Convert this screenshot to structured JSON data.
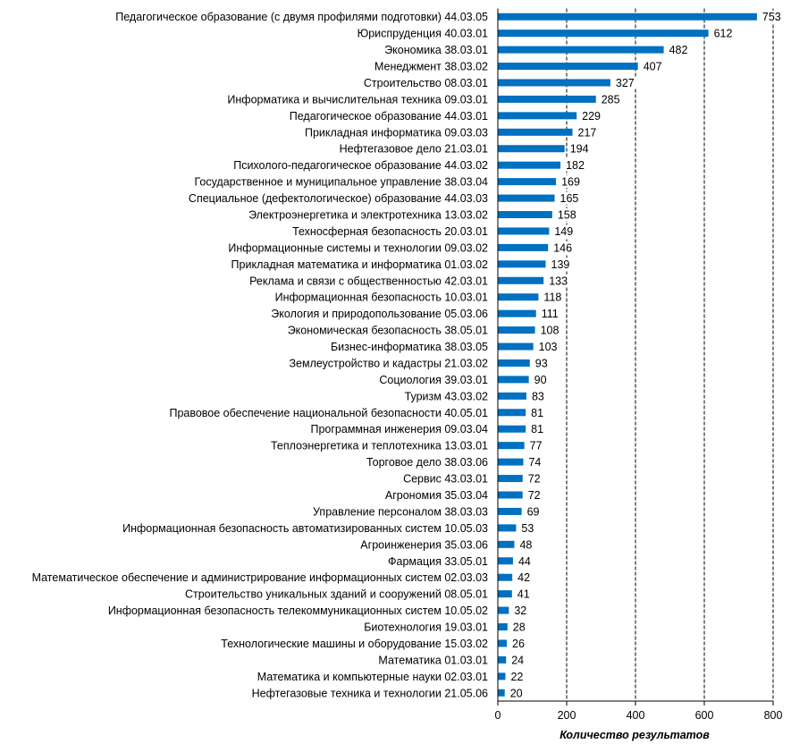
{
  "chart_data": {
    "type": "bar",
    "orientation": "horizontal",
    "xlabel": "Количество результатов",
    "xlim": [
      0,
      800
    ],
    "xticks": [
      0,
      200,
      400,
      600,
      800
    ],
    "grid": "vertical dashed",
    "bar_color": "#0070c0",
    "categories": [
      "Педагогическое образование (с двумя профилями подготовки) 44.03.05",
      "Юриспруденция 40.03.01",
      "Экономика 38.03.01",
      "Менеджмент 38.03.02",
      "Строительство 08.03.01",
      "Информатика и вычислительная техника 09.03.01",
      "Педагогическое образование 44.03.01",
      "Прикладная информатика 09.03.03",
      "Нефтегазовое дело 21.03.01",
      "Психолого-педагогическое образование 44.03.02",
      "Государственное и муниципальное управление 38.03.04",
      "Специальное (дефектологическое) образование 44.03.03",
      "Электроэнергетика и электротехника 13.03.02",
      "Техносферная безопасность 20.03.01",
      "Информационные системы и технологии 09.03.02",
      "Прикладная математика и информатика 01.03.02",
      "Реклама и связи с общественностью 42.03.01",
      "Информационная безопасность 10.03.01",
      "Экология и природопользование 05.03.06",
      "Экономическая безопасность 38.05.01",
      "Бизнес-информатика 38.03.05",
      "Землеустройство и кадастры 21.03.02",
      "Социология 39.03.01",
      "Туризм 43.03.02",
      "Правовое обеспечение национальной безопасности 40.05.01",
      "Программная инженерия 09.03.04",
      "Теплоэнергетика и теплотехника 13.03.01",
      "Торговое дело 38.03.06",
      "Сервис 43.03.01",
      "Агрономия 35.03.04",
      "Управление персоналом 38.03.03",
      "Информационная безопасность автоматизированных систем 10.05.03",
      "Агроинженерия 35.03.06",
      "Фармация 33.05.01",
      "Математическое обеспечение и администрирование информационных систем 02.03.03",
      "Строительство уникальных зданий и сооружений 08.05.01",
      "Информационная безопасность телекоммуникационных систем 10.05.02",
      "Биотехнология 19.03.01",
      "Технологические машины и оборудование 15.03.02",
      "Математика 01.03.01",
      "Математика и компьютерные науки  02.03.01",
      "Нефтегазовые техника и технологии 21.05.06"
    ],
    "values": [
      753,
      612,
      482,
      407,
      327,
      285,
      229,
      217,
      194,
      182,
      169,
      165,
      158,
      149,
      146,
      139,
      133,
      118,
      111,
      108,
      103,
      93,
      90,
      83,
      81,
      81,
      77,
      74,
      72,
      72,
      69,
      53,
      48,
      44,
      42,
      41,
      32,
      28,
      26,
      24,
      22,
      20
    ]
  }
}
